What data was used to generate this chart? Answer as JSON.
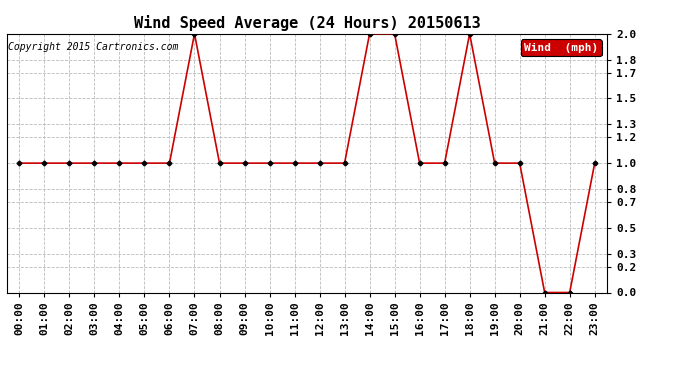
{
  "title": "Wind Speed Average (24 Hours) 20150613",
  "copyright": "Copyright 2015 Cartronics.com",
  "legend_label": "Wind  (mph)",
  "legend_bg": "#cc0000",
  "legend_text_color": "#ffffff",
  "line_color": "#cc0000",
  "marker_color": "#000000",
  "background_color": "#ffffff",
  "grid_color": "#bbbbbb",
  "ylim": [
    0.0,
    2.0
  ],
  "yticks": [
    0.0,
    0.2,
    0.3,
    0.5,
    0.7,
    0.8,
    1.0,
    1.2,
    1.3,
    1.5,
    1.7,
    1.8,
    2.0
  ],
  "hours": [
    0,
    1,
    2,
    3,
    4,
    5,
    6,
    7,
    8,
    9,
    10,
    11,
    12,
    13,
    14,
    15,
    16,
    17,
    18,
    19,
    20,
    21,
    22,
    23
  ],
  "values": [
    1.0,
    1.0,
    1.0,
    1.0,
    1.0,
    1.0,
    1.0,
    2.0,
    1.0,
    1.0,
    1.0,
    1.0,
    1.0,
    1.0,
    2.0,
    2.0,
    1.0,
    1.0,
    2.0,
    1.0,
    1.0,
    0.0,
    0.0,
    1.0
  ],
  "hour_labels": [
    "00:00",
    "01:00",
    "02:00",
    "03:00",
    "04:00",
    "05:00",
    "06:00",
    "07:00",
    "08:00",
    "09:00",
    "10:00",
    "11:00",
    "12:00",
    "13:00",
    "14:00",
    "15:00",
    "16:00",
    "17:00",
    "18:00",
    "19:00",
    "20:00",
    "21:00",
    "22:00",
    "23:00"
  ],
  "title_fontsize": 11,
  "tick_fontsize": 8,
  "copyright_fontsize": 7
}
